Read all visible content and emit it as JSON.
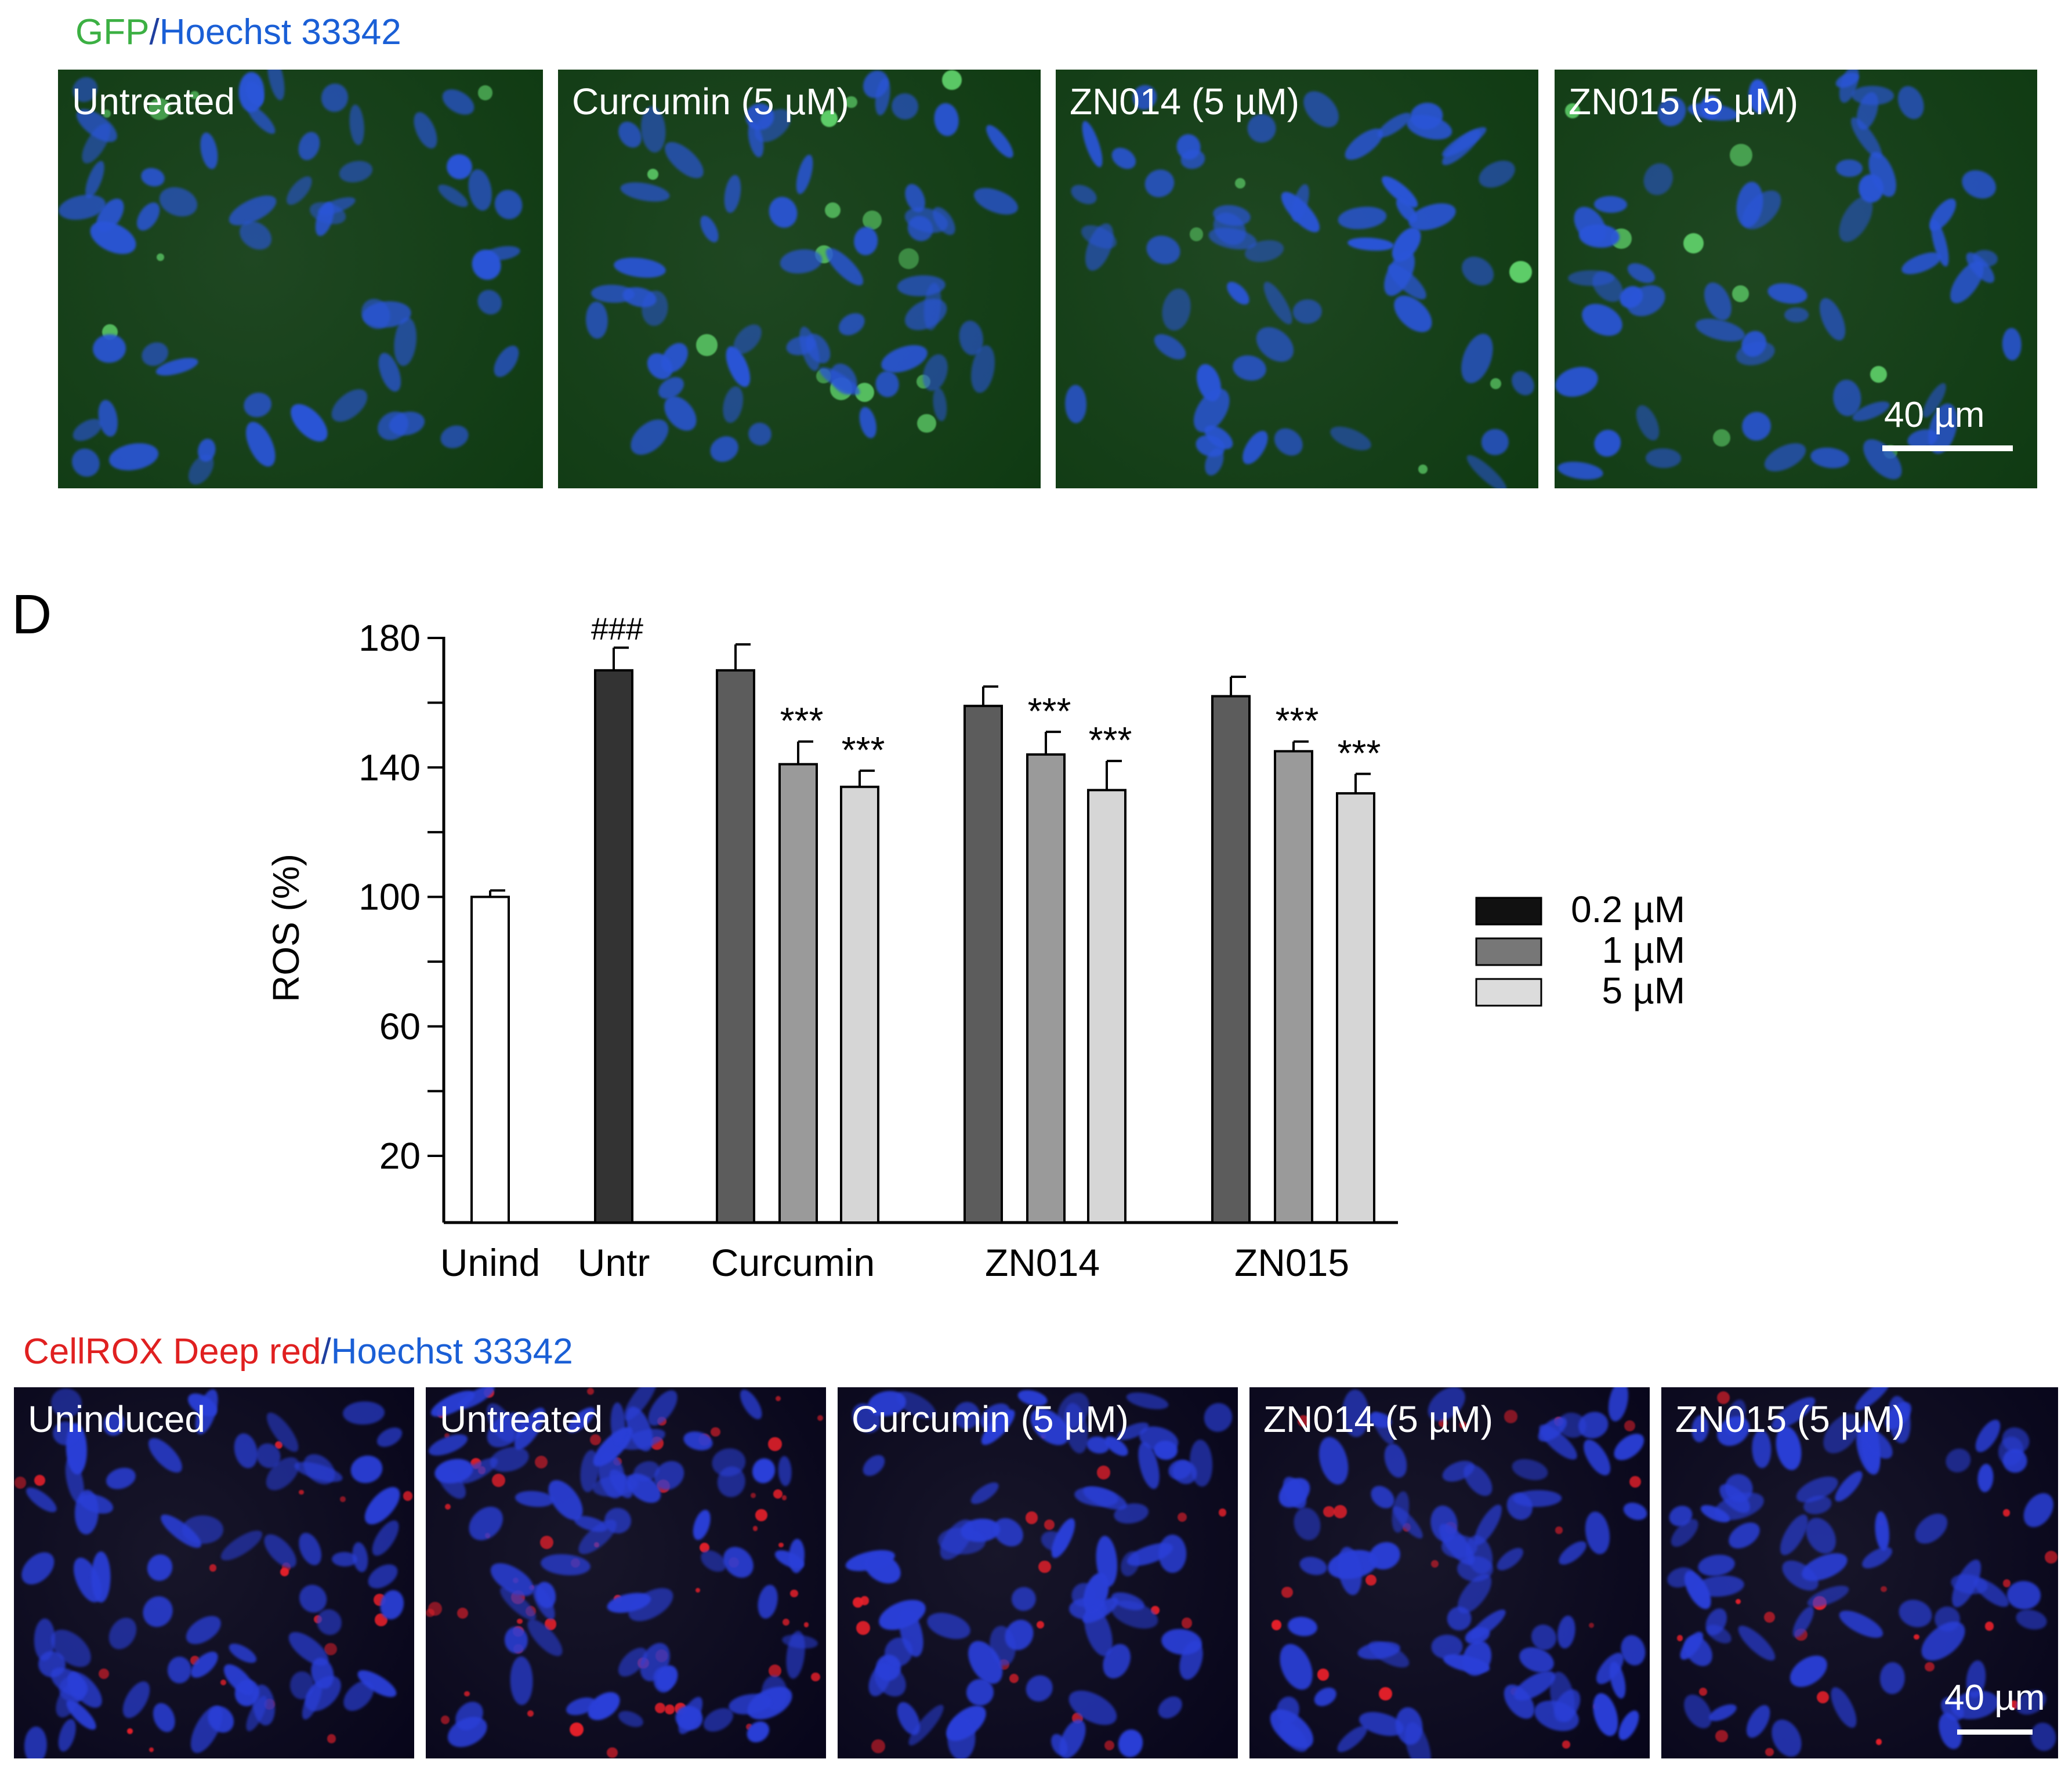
{
  "top_figure": {
    "stain_label_parts": [
      {
        "text": "GFP",
        "color": "#3cb043"
      },
      {
        "text": "/",
        "color": "#1f3f9f"
      },
      {
        "text": "Hoechst 33342",
        "color": "#1a5fd6"
      }
    ],
    "panels": [
      {
        "label": "Untreated"
      },
      {
        "label": "Curcumin (5 µM)"
      },
      {
        "label": "ZN014 (5 µM)"
      },
      {
        "label": "ZN015 (5 µM)"
      }
    ],
    "scale_bar": "40 µm",
    "colors": {
      "background": "#0f3a12",
      "nucleus": "#2a55d8",
      "signal": "#5fd06a"
    }
  },
  "panel_letter": "D",
  "chart_data": {
    "type": "bar",
    "ylabel": "ROS (%)",
    "xlabel": "",
    "ylim": [
      0,
      180
    ],
    "yticks": [
      20,
      60,
      100,
      140,
      180
    ],
    "groups": [
      {
        "name": "Unind",
        "bars": [
          {
            "value": 100,
            "error": 2,
            "color": "#ffffff",
            "annotation": ""
          }
        ]
      },
      {
        "name": "Untr",
        "bars": [
          {
            "value": 170,
            "error": 7,
            "color": "#333333",
            "annotation": "###"
          }
        ]
      },
      {
        "name": "Curcumin",
        "bars": [
          {
            "value": 170,
            "error": 8,
            "color": "#5c5c5c",
            "annotation": ""
          },
          {
            "value": 141,
            "error": 7,
            "color": "#9a9a9a",
            "annotation": "***"
          },
          {
            "value": 134,
            "error": 5,
            "color": "#d6d6d6",
            "annotation": "***"
          }
        ]
      },
      {
        "name": "ZN014",
        "bars": [
          {
            "value": 159,
            "error": 6,
            "color": "#5c5c5c",
            "annotation": ""
          },
          {
            "value": 144,
            "error": 7,
            "color": "#9a9a9a",
            "annotation": "***"
          },
          {
            "value": 133,
            "error": 9,
            "color": "#d6d6d6",
            "annotation": "***"
          }
        ]
      },
      {
        "name": "ZN015",
        "bars": [
          {
            "value": 162,
            "error": 6,
            "color": "#5c5c5c",
            "annotation": ""
          },
          {
            "value": 145,
            "error": 3,
            "color": "#9a9a9a",
            "annotation": "***"
          },
          {
            "value": 132,
            "error": 6,
            "color": "#d6d6d6",
            "annotation": "***"
          }
        ]
      }
    ],
    "legend": {
      "placement": "right",
      "entries": [
        {
          "label": "0.2 µM",
          "color": "#111111"
        },
        {
          "label": "1 µM",
          "color": "#777777"
        },
        {
          "label": "5 µM",
          "color": "#dcdcdc"
        }
      ]
    }
  },
  "bottom_figure": {
    "stain_label_parts": [
      {
        "text": "CellROX Deep red",
        "color": "#e02020"
      },
      {
        "text": "/",
        "color": "#1f3f9f"
      },
      {
        "text": "Hoechst 33342",
        "color": "#1a5fd6"
      }
    ],
    "panels": [
      {
        "label": "Uninduced"
      },
      {
        "label": "Untreated"
      },
      {
        "label": "Curcumin (5 µM)"
      },
      {
        "label": "ZN014 (5 µM)"
      },
      {
        "label": "ZN015 (5 µM)"
      }
    ],
    "scale_bar": "40 µm",
    "colors": {
      "background": "#07051a",
      "nucleus": "#2a3fd8",
      "signal": "#e8202a"
    }
  }
}
